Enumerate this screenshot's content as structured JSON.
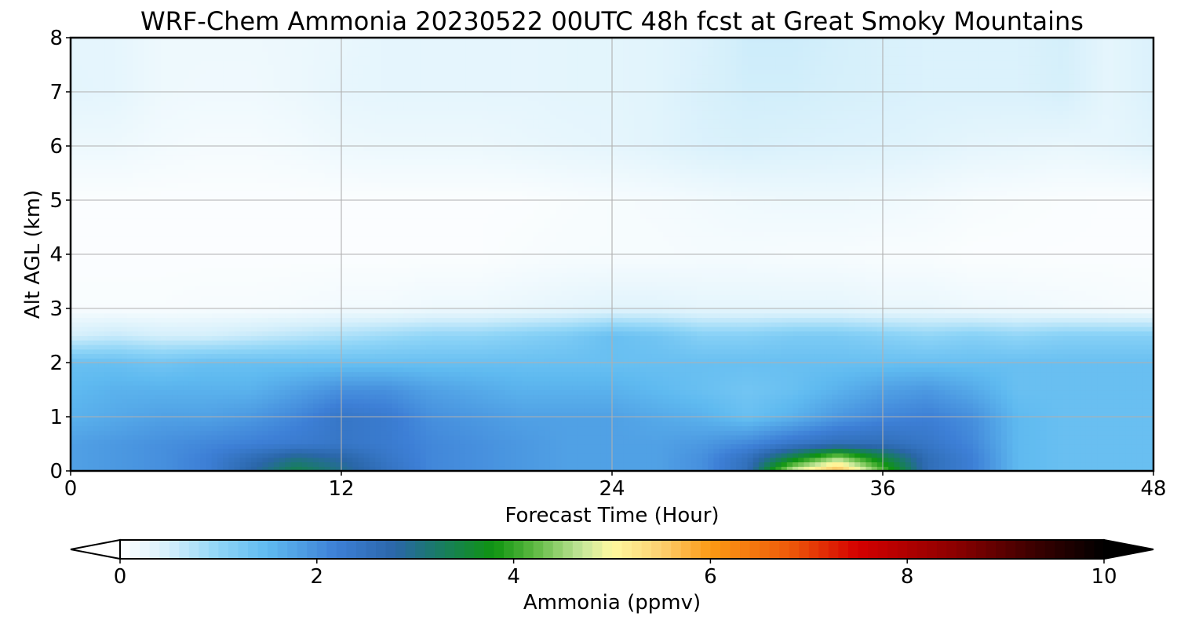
{
  "chart_data": {
    "type": "heatmap",
    "title": "WRF-Chem Ammonia  20230522 00UTC 48h fcst at Great Smoky Mountains",
    "xlabel": "Forecast Time (Hour)",
    "ylabel": "Alt AGL (km)",
    "xlim": [
      0,
      48
    ],
    "ylim": [
      0,
      8
    ],
    "xticks": [
      "0",
      "12",
      "24",
      "36",
      "48"
    ],
    "yticks": [
      "0",
      "1",
      "2",
      "3",
      "4",
      "5",
      "6",
      "7",
      "8"
    ],
    "grid": true,
    "colorbar": {
      "label": "Ammonia  (ppmv)",
      "range": [
        0,
        10
      ],
      "ticks": [
        "0",
        "2",
        "4",
        "6",
        "8",
        "10"
      ],
      "extend": "both",
      "stops": [
        {
          "v": 0.0,
          "c": "#ffffff"
        },
        {
          "v": 0.5,
          "c": "#d4effb"
        },
        {
          "v": 1.0,
          "c": "#8fd5f7"
        },
        {
          "v": 1.5,
          "c": "#5fbaf0"
        },
        {
          "v": 2.2,
          "c": "#3d7fd6"
        },
        {
          "v": 2.8,
          "c": "#2a66a8"
        },
        {
          "v": 3.2,
          "c": "#1a7a6a"
        },
        {
          "v": 3.8,
          "c": "#0f9411"
        },
        {
          "v": 4.2,
          "c": "#5bb840"
        },
        {
          "v": 4.7,
          "c": "#c6e79a"
        },
        {
          "v": 5.0,
          "c": "#fffaa0"
        },
        {
          "v": 5.5,
          "c": "#fdd070"
        },
        {
          "v": 6.0,
          "c": "#fc9a14"
        },
        {
          "v": 6.8,
          "c": "#ee5a0a"
        },
        {
          "v": 7.5,
          "c": "#d40000"
        },
        {
          "v": 8.5,
          "c": "#8a0000"
        },
        {
          "v": 9.3,
          "c": "#3a0000"
        },
        {
          "v": 10.0,
          "c": "#000000"
        }
      ]
    },
    "field": {
      "x_hours": [
        0,
        2,
        4,
        6,
        8,
        10,
        12,
        14,
        16,
        18,
        20,
        22,
        24,
        26,
        28,
        30,
        32,
        34,
        36,
        38,
        40,
        42,
        44,
        46,
        48
      ],
      "z_km": [
        0,
        0.25,
        0.5,
        1,
        1.5,
        2,
        2.5,
        3,
        4,
        5,
        6,
        7,
        8
      ],
      "ammonia_ppmv": [
        [
          1.8,
          1.9,
          2.0,
          2.2,
          2.8,
          3.4,
          3.0,
          2.5,
          2.1,
          2.0,
          1.9,
          1.8,
          1.8,
          1.8,
          2.0,
          2.6,
          4.8,
          5.8,
          4.2,
          2.6,
          2.2,
          1.5,
          1.4,
          1.4,
          1.4
        ],
        [
          1.8,
          1.9,
          2.0,
          2.2,
          2.6,
          3.0,
          2.8,
          2.4,
          2.1,
          2.0,
          1.9,
          1.8,
          1.8,
          1.8,
          2.0,
          2.5,
          3.5,
          4.5,
          3.5,
          2.6,
          2.2,
          1.5,
          1.4,
          1.4,
          1.4
        ],
        [
          1.8,
          1.9,
          2.0,
          2.1,
          2.2,
          2.3,
          2.4,
          2.3,
          2.1,
          2.0,
          1.9,
          1.8,
          1.8,
          1.8,
          1.9,
          2.1,
          2.4,
          2.6,
          2.6,
          2.4,
          2.1,
          1.5,
          1.4,
          1.4,
          1.4
        ],
        [
          1.6,
          1.7,
          1.8,
          1.8,
          1.9,
          2.1,
          2.4,
          2.3,
          2.0,
          1.9,
          1.8,
          1.8,
          1.8,
          1.7,
          1.6,
          1.4,
          1.6,
          1.9,
          2.1,
          2.2,
          2.0,
          1.5,
          1.4,
          1.4,
          1.4
        ],
        [
          1.5,
          1.6,
          1.6,
          1.6,
          1.6,
          1.8,
          2.0,
          2.0,
          1.8,
          1.7,
          1.6,
          1.6,
          1.6,
          1.5,
          1.4,
          1.3,
          1.4,
          1.6,
          1.8,
          1.9,
          1.7,
          1.4,
          1.4,
          1.4,
          1.4
        ],
        [
          1.4,
          1.4,
          1.3,
          1.4,
          1.4,
          1.4,
          1.4,
          1.4,
          1.4,
          1.4,
          1.4,
          1.4,
          1.4,
          1.4,
          1.4,
          1.4,
          1.4,
          1.4,
          1.4,
          1.4,
          1.4,
          1.4,
          1.4,
          1.4,
          1.4
        ],
        [
          0.5,
          0.6,
          0.5,
          0.5,
          0.6,
          0.7,
          0.8,
          0.9,
          1.0,
          1.0,
          1.1,
          1.2,
          1.4,
          1.3,
          1.1,
          1.1,
          1.2,
          1.2,
          1.1,
          1.0,
          1.1,
          1.0,
          1.1,
          1.1,
          1.1
        ],
        [
          0.08,
          0.08,
          0.08,
          0.1,
          0.1,
          0.12,
          0.15,
          0.15,
          0.2,
          0.2,
          0.25,
          0.3,
          0.35,
          0.35,
          0.3,
          0.3,
          0.3,
          0.3,
          0.25,
          0.25,
          0.2,
          0.18,
          0.15,
          0.12,
          0.1
        ],
        [
          0.05,
          0.05,
          0.05,
          0.05,
          0.05,
          0.05,
          0.05,
          0.05,
          0.05,
          0.05,
          0.08,
          0.1,
          0.1,
          0.1,
          0.12,
          0.12,
          0.1,
          0.1,
          0.08,
          0.08,
          0.05,
          0.05,
          0.05,
          0.05,
          0.05
        ],
        [
          0.05,
          0.05,
          0.05,
          0.05,
          0.05,
          0.05,
          0.05,
          0.05,
          0.05,
          0.05,
          0.05,
          0.08,
          0.1,
          0.12,
          0.15,
          0.18,
          0.2,
          0.2,
          0.18,
          0.15,
          0.1,
          0.08,
          0.06,
          0.05,
          0.05
        ],
        [
          0.2,
          0.2,
          0.15,
          0.12,
          0.12,
          0.15,
          0.2,
          0.22,
          0.22,
          0.22,
          0.25,
          0.28,
          0.3,
          0.35,
          0.42,
          0.45,
          0.42,
          0.4,
          0.38,
          0.35,
          0.3,
          0.28,
          0.25,
          0.28,
          0.35
        ],
        [
          0.32,
          0.3,
          0.2,
          0.18,
          0.18,
          0.22,
          0.28,
          0.3,
          0.3,
          0.3,
          0.3,
          0.32,
          0.32,
          0.35,
          0.45,
          0.52,
          0.52,
          0.48,
          0.45,
          0.42,
          0.42,
          0.42,
          0.48,
          0.3,
          0.42
        ],
        [
          0.3,
          0.3,
          0.2,
          0.2,
          0.2,
          0.22,
          0.25,
          0.3,
          0.3,
          0.3,
          0.3,
          0.32,
          0.32,
          0.35,
          0.42,
          0.55,
          0.55,
          0.5,
          0.45,
          0.42,
          0.42,
          0.42,
          0.5,
          0.3,
          0.42
        ]
      ]
    }
  }
}
